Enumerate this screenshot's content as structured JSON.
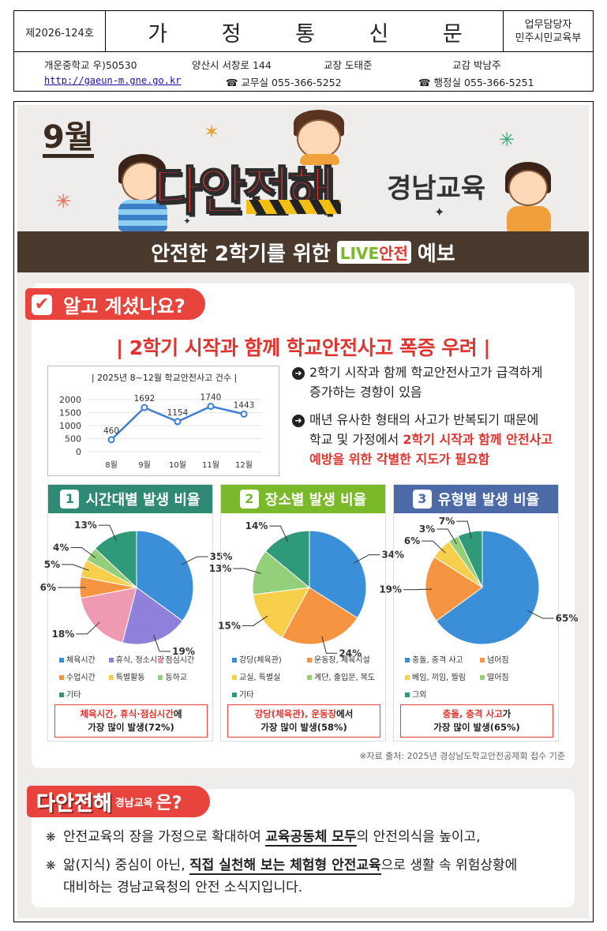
{
  "letterhead": {
    "issue_no": "제2026-124호",
    "title": "가 정 통 신 문",
    "dept_line1": "업무담당자",
    "dept_line2": "민주시민교육부",
    "school": "개운중학교 우)50530",
    "address": "양산시 서창로 144",
    "principal": "교장 도태준",
    "vice_principal": "교감 박남주",
    "url": "http://gaeun-m.gne.go.kr",
    "office_phone": "☎ 교무실 055-366-5252",
    "admin_phone": "☎ 행정실 055-366-5251"
  },
  "poster": {
    "month": "9월",
    "brand": "다안전해",
    "brand_sub": "경남교육",
    "banner_pre": "안전한 2학기를 위한",
    "banner_live": "LIVE",
    "banner_live2": "안전",
    "banner_post": "예보",
    "section_tag": "알고 계셨나요?",
    "headline": "| 2학기 시작과 함께 학교안전사고 폭증 우려 |",
    "bullet1_line1": "2학기 시작과 함께 학교안전사고가 급격하게",
    "bullet1_line2": "증가하는 경향이 있음",
    "bullet2_line1": "매년 유사한 형태의 사고가 반복되기 때문에",
    "bullet2_line2a": "학교 및 가정에서 ",
    "bullet2_line2b": "2학기 시작과 함께 안전사고",
    "bullet2_line3": "예방을 위한 각별한 지도가 필요함",
    "source": "※자료 출처: 2025년 경상남도학교안전공제회 접수 기준",
    "colors": {
      "accent": "#e8433c",
      "banner": "#4a3a2e",
      "time_head": "#2e8a74",
      "place_head": "#7ab929",
      "type_head": "#4d6aa8"
    }
  },
  "chart_data": [
    {
      "type": "line",
      "title": "| 2025년 8~12월 학교안전사고 건수 |",
      "categories": [
        "8월",
        "9월",
        "10월",
        "11월",
        "12월"
      ],
      "values": [
        460,
        1692,
        1154,
        1740,
        1443
      ],
      "yticks": [
        "2000",
        "1500",
        "1000",
        "500",
        "0"
      ],
      "ylim": [
        0,
        2000
      ],
      "color": "#3d7fd6"
    },
    {
      "type": "pie",
      "number": "1",
      "title": "시간대별 발생 비율",
      "slices": [
        {
          "label": "체육시간",
          "value": 35,
          "text": "35%",
          "color": "#3a8fd8"
        },
        {
          "label": "휴식, 청소시간",
          "value": 19,
          "text": "19%",
          "color": "#8f80db"
        },
        {
          "label": "점심시간",
          "value": 18,
          "text": "18%",
          "color": "#ef9ab2"
        },
        {
          "label": "수업시간",
          "value": 6,
          "text": "6%",
          "color": "#f79442"
        },
        {
          "label": "특별활동",
          "value": 5,
          "text": "5%",
          "color": "#f7cf4a"
        },
        {
          "label": "등하교",
          "value": 4,
          "text": "4%",
          "color": "#94cf7a"
        },
        {
          "label": "기타",
          "value": 13,
          "text": "13%",
          "color": "#2e9a7a"
        }
      ],
      "summary_red": "체육시간, 휴식·점심시간",
      "summary_tail": "에",
      "summary_line2": "가장 많이 발생(72%)"
    },
    {
      "type": "pie",
      "number": "2",
      "title": "장소별 발생 비율",
      "slices": [
        {
          "label": "강당(체육관)",
          "value": 34,
          "text": "34%",
          "color": "#3a8fd8"
        },
        {
          "label": "운동장, 체육시설",
          "value": 24,
          "text": "24%",
          "color": "#f79442"
        },
        {
          "label": "교실, 특별실",
          "value": 15,
          "text": "15%",
          "color": "#f7cf4a"
        },
        {
          "label": "계단, 출입문, 복도",
          "value": 13,
          "text": "13%",
          "color": "#94cf7a"
        },
        {
          "label": "기타",
          "value": 14,
          "text": "14%",
          "color": "#2e9a7a"
        }
      ],
      "summary_red": "강당(체육관), 운동장",
      "summary_tail": "에서",
      "summary_line2": "가장 많이 발생(58%)"
    },
    {
      "type": "pie",
      "number": "3",
      "title": "유형별 발생 비율",
      "slices": [
        {
          "label": "충돌, 충격 사고",
          "value": 65,
          "text": "65%",
          "color": "#3a8fd8"
        },
        {
          "label": "넘어짐",
          "value": 19,
          "text": "19%",
          "color": "#f79442"
        },
        {
          "label": "베임, 끼임, 찔림",
          "value": 6,
          "text": "6%",
          "color": "#f7cf4a"
        },
        {
          "label": "떨어짐",
          "value": 3,
          "text": "3%",
          "color": "#94cf7a"
        },
        {
          "label": "그외",
          "value": 7,
          "text": "7%",
          "color": "#2e9a7a"
        }
      ],
      "summary_red": "충돌, 충격 사고",
      "summary_tail": "가",
      "summary_line2": "가장 많이 발생(65%)"
    }
  ],
  "intro": {
    "brand": "다안전해",
    "brand_sub": "경남교육",
    "question": "은?",
    "line1_a": "안전교육의 장을 가정으로 확대하여 ",
    "line1_b": "교육공동체 모두",
    "line1_c": "의 안전의식을 높이고,",
    "line2_a": "앎(지식) 중심이 아닌, ",
    "line2_b": "직접 실천해 보는 체험형 안전교육",
    "line2_c": "으로 생활 속 위험상황에",
    "line3": "대비하는 경남교육청의 안전 소식지입니다."
  }
}
